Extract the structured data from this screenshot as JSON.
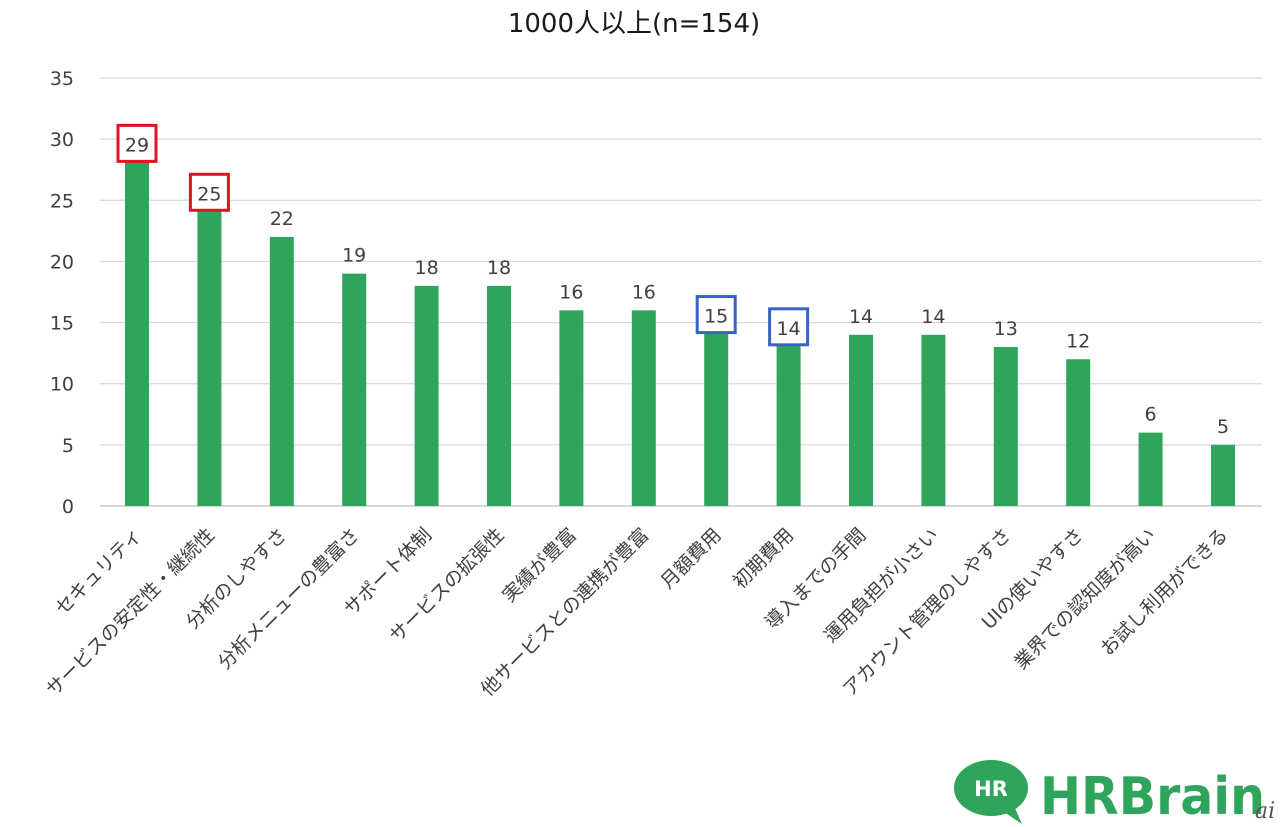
{
  "chart_data": {
    "type": "bar",
    "title": "1000人以上(n=154)",
    "categories": [
      "セキュリティ",
      "サービスの安定性・継続性",
      "分析のしやすさ",
      "分析メニューの豊富さ",
      "サポート体制",
      "サービスの拡張性",
      "実績が豊富",
      "他サービスとの連携が豊富",
      "月額費用",
      "初期費用",
      "導入までの手間",
      "運用負担が小さい",
      "アカウント管理のしやすさ",
      "UIの使いやすさ",
      "業界での認知度が高い",
      "お試し利用ができる"
    ],
    "values": [
      29,
      25,
      22,
      19,
      18,
      18,
      16,
      16,
      15,
      14,
      14,
      14,
      13,
      12,
      6,
      5
    ],
    "ylim": [
      0,
      35
    ],
    "yticks": [
      0,
      5,
      10,
      15,
      20,
      25,
      30,
      35
    ],
    "grid": true,
    "bar_color": "#2ea55a",
    "highlights": [
      {
        "index": 0,
        "color": "#e0141e"
      },
      {
        "index": 1,
        "color": "#e0141e"
      },
      {
        "index": 8,
        "color": "#3a62c4"
      },
      {
        "index": 9,
        "color": "#3a62c4"
      }
    ]
  },
  "logo": {
    "badge": "HR",
    "wordmark_hr": "HR",
    "wordmark_brain": "Brain",
    "color": "#2ea55a"
  },
  "watermark": "ai"
}
